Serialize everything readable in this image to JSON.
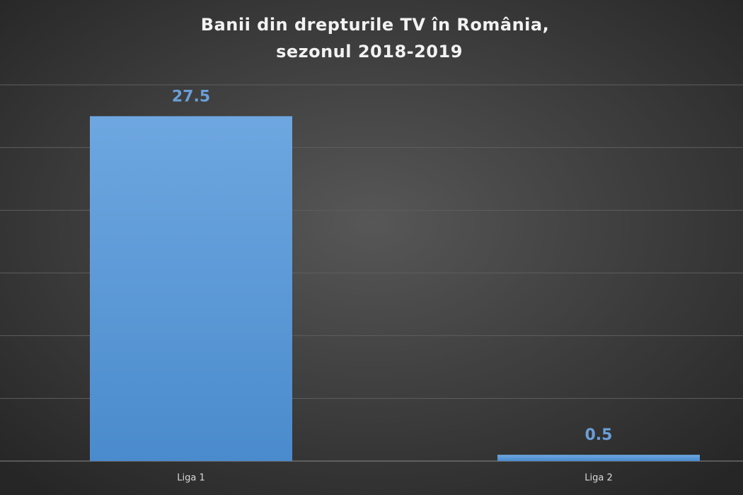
{
  "chart_data": {
    "type": "bar",
    "title": [
      "Banii din drepturile TV în România,",
      "sezonul 2018-2019"
    ],
    "categories": [
      "Liga 1",
      "Liga 2"
    ],
    "values": [
      27.5,
      0.5
    ],
    "color": "#5b9bd5",
    "ylim": [
      0,
      30
    ],
    "yticks": [
      0,
      5,
      10,
      15,
      20,
      25,
      30
    ],
    "grid": true
  }
}
